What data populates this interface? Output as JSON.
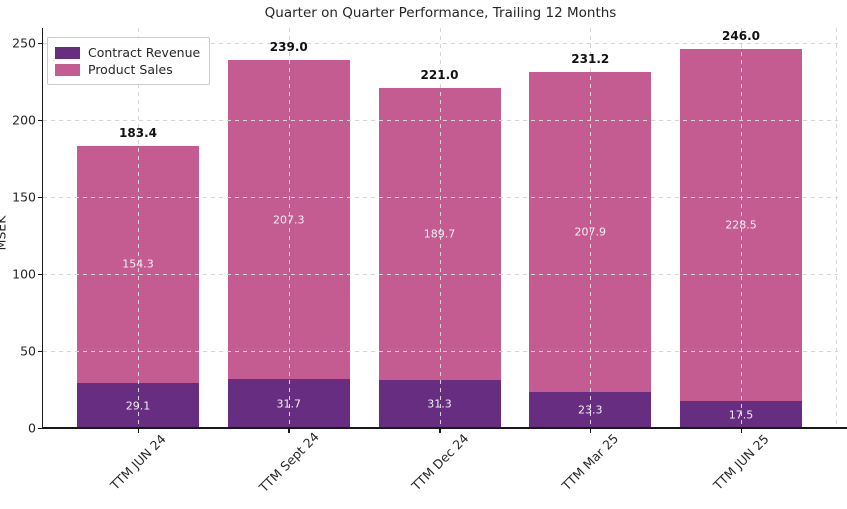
{
  "chart_data": {
    "type": "bar",
    "stacked": true,
    "title": "Quarter on Quarter Performance, Trailing 12 Months",
    "ylabel": "MSEK",
    "xlabel": "",
    "categories": [
      "TTM JUN 24",
      "TTM Sept 24",
      "TTM Dec 24",
      "TTM Mar 25",
      "TTM JUN 25"
    ],
    "series": [
      {
        "name": "Contract Revenue",
        "color": "#672d80",
        "values": [
          29.1,
          31.7,
          31.3,
          23.3,
          17.5
        ]
      },
      {
        "name": "Product Sales",
        "color": "#c45c91",
        "values": [
          154.3,
          207.3,
          189.7,
          207.9,
          228.5
        ]
      }
    ],
    "totals": [
      "183.4",
      "239.0",
      "221.0",
      "231.2",
      "246.0"
    ],
    "ylim": [
      0,
      250
    ],
    "yticks": [
      0,
      50,
      100,
      150,
      200,
      250
    ],
    "grid": true,
    "grid_style": "dashed",
    "legend_position": "upper left",
    "colors": {
      "grid": "#d6d6d6",
      "axis": "#1a1a1a",
      "tick_label": "#262626",
      "total_label": "#111111",
      "segment_label": "#f4eef6",
      "background": "#ffffff"
    }
  }
}
